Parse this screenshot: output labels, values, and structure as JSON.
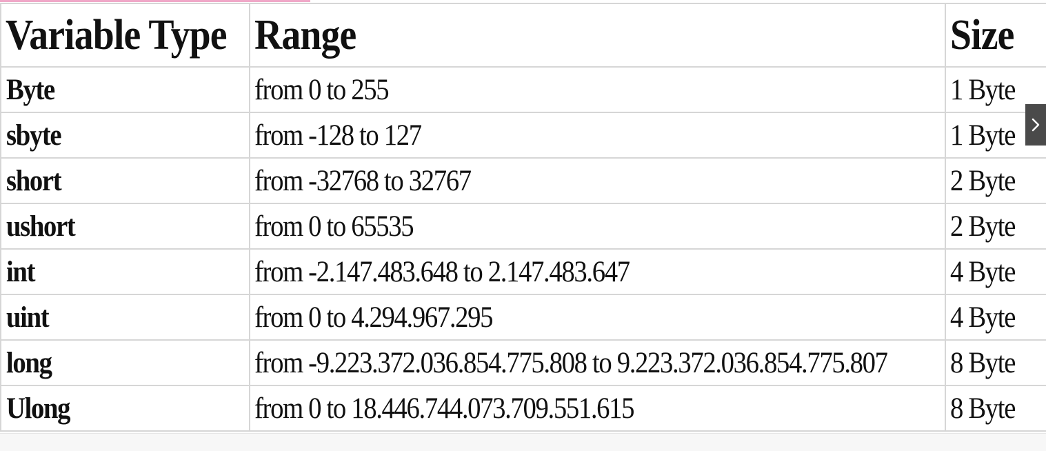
{
  "table": {
    "headers": {
      "type": "Variable Type",
      "range": "Range",
      "size": "Size"
    },
    "rows": [
      {
        "type": "Byte",
        "range": "from 0 to 255",
        "size": "1 Byte"
      },
      {
        "type": "sbyte",
        "range": "from -128 to 127",
        "size": "1 Byte"
      },
      {
        "type": "short",
        "range": "from -32768 to 32767",
        "size": "2 Byte"
      },
      {
        "type": "ushort",
        "range": "from 0 to 65535",
        "size": "2 Byte"
      },
      {
        "type": "int",
        "range": "from -2.147.483.648 to 2.147.483.647",
        "size": "4 Byte"
      },
      {
        "type": "uint",
        "range": "from 0 to 4.294.967.295",
        "size": "4 Byte"
      },
      {
        "type": "long",
        "range": "from -9.223.372.036.854.775.808 to 9.223.372.036.854.775.807",
        "size": "8 Byte"
      },
      {
        "type": "Ulong",
        "range": "from 0 to 18.446.744.073.709.551.615",
        "size": "8 Byte"
      }
    ]
  },
  "nav": {
    "next_icon": "chevron-right-icon"
  },
  "colors": {
    "border": "#d6d6d6",
    "text": "#111111",
    "nav_button": "#4a4a4a",
    "accent_strip": "#f0a8c8"
  }
}
